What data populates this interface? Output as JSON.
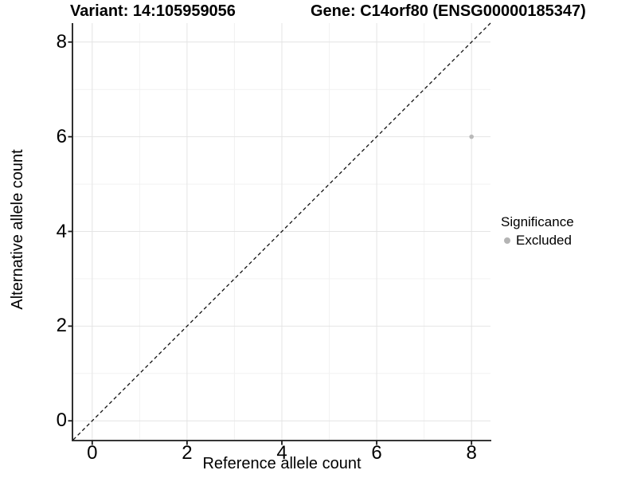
{
  "chart_data": {
    "type": "scatter",
    "title_left": "Variant: 14:105959056",
    "title_right": "Gene: C14orf80 (ENSG00000185347)",
    "xlabel": "Reference allele count",
    "ylabel": "Alternative allele count",
    "xlim": [
      -0.4,
      8.4
    ],
    "ylim": [
      -0.4,
      8.4
    ],
    "xticks": [
      0,
      2,
      4,
      6,
      8
    ],
    "yticks": [
      0,
      2,
      4,
      6,
      8
    ],
    "xticks_minor": [
      1,
      3,
      5,
      7
    ],
    "yticks_minor": [
      1,
      3,
      5,
      7
    ],
    "grid": "major+minor",
    "series": [
      {
        "name": "Excluded",
        "marker": "circle",
        "color": "#b9b9b9",
        "points": [
          [
            8,
            6
          ]
        ]
      }
    ],
    "reference_line": {
      "kind": "identity",
      "slope": 1,
      "intercept": 0,
      "style": "dashed",
      "color": "#111111"
    },
    "legend": {
      "title": "Significance",
      "position": "right",
      "entries": [
        {
          "label": "Excluded",
          "color": "#b4b4b4",
          "marker": "circle"
        }
      ]
    },
    "colors": {
      "background": "#ffffff",
      "grid_major": "#e4e4e4",
      "grid_minor": "#f2f2f2",
      "axis": "#1a1a1a",
      "tick_text": "#000000"
    }
  }
}
